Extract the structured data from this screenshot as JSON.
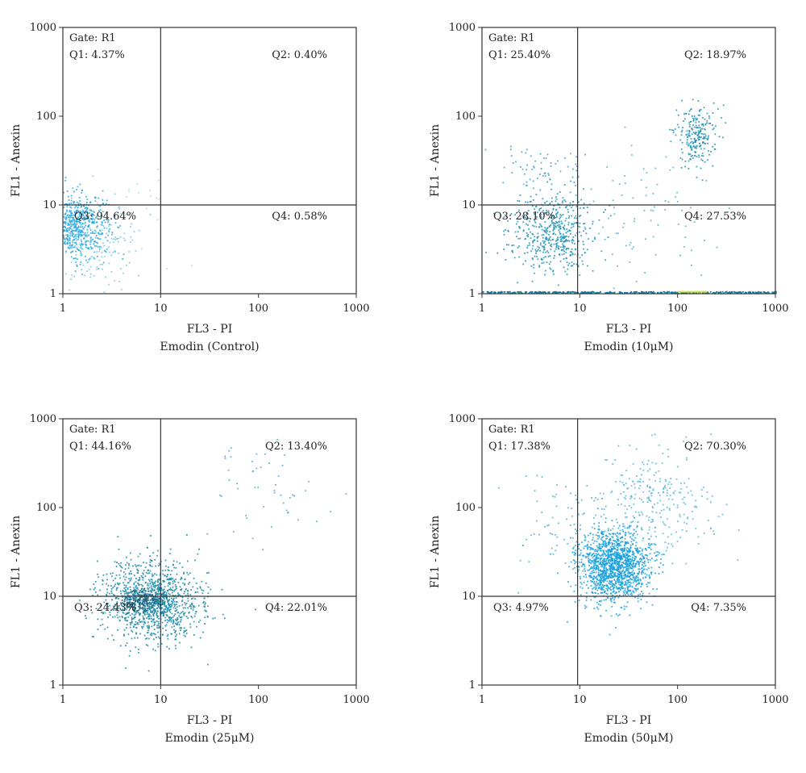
{
  "chart_data": [
    {
      "type": "scatter",
      "xlabel": "FL3 - PI",
      "ylabel": "FL1 - Anexin",
      "subtitle": "Emodin (Control)",
      "scale": "log",
      "xlim": [
        1,
        1000
      ],
      "ylim": [
        1,
        1000
      ],
      "ticks": [
        "1",
        "10",
        "100",
        "1000"
      ],
      "gate": "Gate: R1",
      "gate_x": 10,
      "gate_y": 10,
      "quadrants": {
        "q1": "Q1: 4.37%",
        "q2": "Q2: 0.40%",
        "q3": "Q3: 94.64%",
        "q4": "Q4: 0.58%"
      },
      "clusters": [
        {
          "cx": 1.3,
          "cy": 6.0,
          "sx": 1.9,
          "sy": 2.0,
          "n": 650,
          "color": "#2aa6e0"
        },
        {
          "cx": 2.0,
          "cy": 3.5,
          "sx": 2.6,
          "sy": 2.6,
          "n": 180,
          "color": "#7cc8ea"
        },
        {
          "cx": 6.0,
          "cy": 8.0,
          "sx": 2.5,
          "sy": 3.0,
          "n": 25,
          "color": "#a9daf0"
        }
      ],
      "edge": null
    },
    {
      "type": "scatter",
      "xlabel": "FL3 - PI",
      "ylabel": "FL1 - Anexin",
      "subtitle": "Emodin (10μM)",
      "scale": "log",
      "xlim": [
        1,
        1000
      ],
      "ylim": [
        1,
        1000
      ],
      "ticks": [
        "1",
        "10",
        "100",
        "1000"
      ],
      "gate": "Gate: R1",
      "gate_x": 9.5,
      "gate_y": 10,
      "quadrants": {
        "q1": "Q1: 25.40%",
        "q2": "Q2: 18.97%",
        "q3": "Q3: 28.10%",
        "q4": "Q4: 27.53%"
      },
      "clusters": [
        {
          "cx": 5.0,
          "cy": 5.0,
          "sx": 2.3,
          "sy": 2.4,
          "n": 520,
          "color": "#1e93b8"
        },
        {
          "cx": 150,
          "cy": 60,
          "sx": 1.5,
          "sy": 1.9,
          "n": 230,
          "color": "#1f8fb0"
        },
        {
          "cx": 40,
          "cy": 8,
          "sx": 4.0,
          "sy": 4.0,
          "n": 90,
          "color": "#4fb0cc"
        },
        {
          "cx": 4,
          "cy": 25,
          "sx": 2.5,
          "sy": 1.8,
          "n": 60,
          "color": "#3aa3c4"
        }
      ],
      "edge": {
        "y": 1.05,
        "n": 380,
        "color": "#167a9c",
        "accent": "#d6e23a",
        "accent_x": [
          100,
          200
        ]
      }
    },
    {
      "type": "scatter",
      "xlabel": "FL3 - PI",
      "ylabel": "FL1 - Anexin",
      "subtitle": "Emodin (25μM)",
      "scale": "log",
      "xlim": [
        1,
        1000
      ],
      "ylim": [
        1,
        1000
      ],
      "ticks": [
        "1",
        "10",
        "100",
        "1000"
      ],
      "gate": "Gate: R1",
      "gate_x": 10,
      "gate_y": 10,
      "quadrants": {
        "q1": "Q1: 44.16%",
        "q2": "Q2: 13.40%",
        "q3": "Q3: 24.43%",
        "q4": "Q4: 22.01%"
      },
      "clusters": [
        {
          "cx": 8.0,
          "cy": 9.0,
          "sx": 2.7,
          "sy": 2.4,
          "n": 1150,
          "color": "#1a8aa8"
        },
        {
          "cx": 6.5,
          "cy": 9.0,
          "sx": 1.5,
          "sy": 1.3,
          "n": 180,
          "color": "#1d5f7c"
        },
        {
          "cx": 120,
          "cy": 150,
          "sx": 3.2,
          "sy": 3.2,
          "n": 50,
          "color": "#4fa8c4"
        }
      ],
      "edge": null
    },
    {
      "type": "scatter",
      "xlabel": "FL3 - PI",
      "ylabel": "FL1 - Anexin",
      "subtitle": "Emodin (50μM)",
      "scale": "log",
      "xlim": [
        1,
        1000
      ],
      "ylim": [
        1,
        1000
      ],
      "ticks": [
        "1",
        "10",
        "100",
        "1000"
      ],
      "gate": "Gate: R1",
      "gate_x": 9.5,
      "gate_y": 10,
      "quadrants": {
        "q1": "Q1: 17.38%",
        "q2": "Q2: 70.30%",
        "q3": "Q3: 4.97%",
        "q4": "Q4: 7.35%"
      },
      "clusters": [
        {
          "cx": 22,
          "cy": 22,
          "sx": 2.0,
          "sy": 2.2,
          "n": 1450,
          "color": "#1aa0dc"
        },
        {
          "cx": 60,
          "cy": 120,
          "sx": 3.0,
          "sy": 3.0,
          "n": 280,
          "color": "#56b6dc"
        },
        {
          "cx": 8,
          "cy": 60,
          "sx": 3.0,
          "sy": 3.5,
          "n": 90,
          "color": "#4aaed6"
        }
      ],
      "edge": null
    }
  ]
}
